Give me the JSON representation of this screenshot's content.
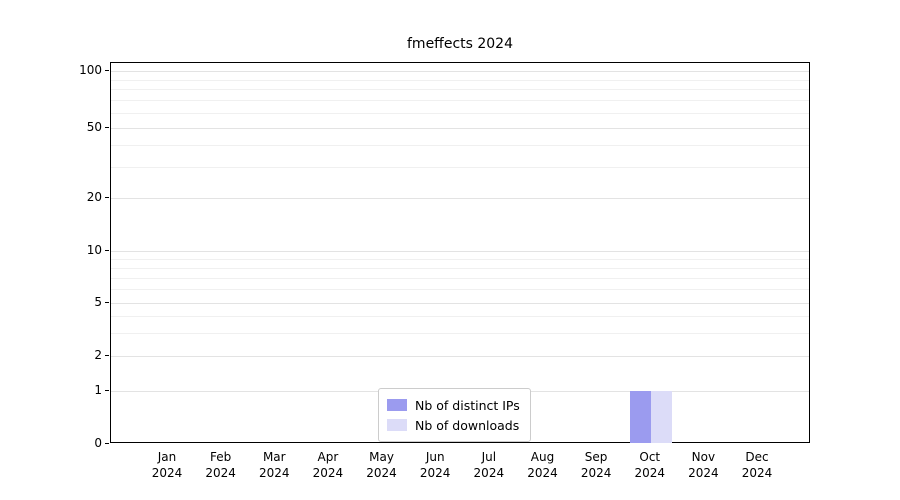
{
  "chart_data": {
    "type": "bar",
    "title": "fmeffects 2024",
    "categories": [
      "Jan",
      "Feb",
      "Mar",
      "Apr",
      "May",
      "Jun",
      "Jul",
      "Aug",
      "Sep",
      "Oct",
      "Nov",
      "Dec"
    ],
    "year": "2024",
    "series": [
      {
        "name": "Nb of distinct IPs",
        "color": "#9b9bef",
        "values": [
          0,
          0,
          0,
          0,
          0,
          0,
          0,
          0,
          0,
          1,
          0,
          0
        ]
      },
      {
        "name": "Nb of downloads",
        "color": "#dcdcf8",
        "values": [
          0,
          0,
          0,
          0,
          0,
          0,
          0,
          0,
          0,
          1,
          0,
          0
        ]
      }
    ],
    "yticks": [
      0,
      1,
      2,
      5,
      10,
      20,
      50,
      100
    ],
    "ylim": [
      0,
      100
    ],
    "yscale": "log-above-1-linear-below",
    "grid": true,
    "legend_position": "bottom-center",
    "colors": {
      "distinct_ips": "#9b9bef",
      "downloads": "#dcdcf8",
      "grid_major": "#e3e3e3",
      "grid_minor": "#f0f0f0",
      "axis": "#000000"
    }
  }
}
